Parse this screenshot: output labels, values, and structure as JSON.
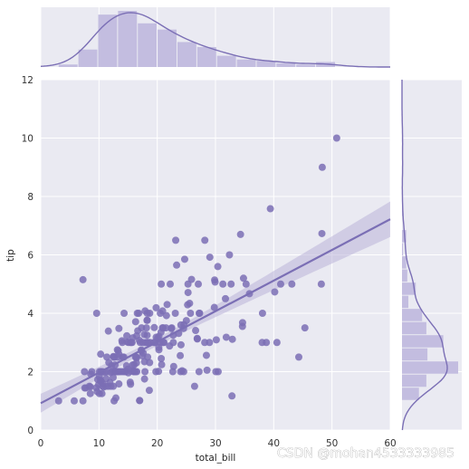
{
  "chart_data": {
    "type": "scatter",
    "subtype": "jointplot-with-regression",
    "xlabel": "total_bill",
    "ylabel": "tip",
    "xlim": [
      0,
      60
    ],
    "ylim": [
      0,
      12
    ],
    "x_ticks": [
      0,
      10,
      20,
      30,
      40,
      50,
      60
    ],
    "y_ticks": [
      0,
      2,
      4,
      6,
      8,
      10,
      12
    ],
    "grid": true,
    "legend": "none",
    "colors": {
      "points": "#7b6fb5",
      "line": "#7b6fb5",
      "band": "#b9b3d9",
      "hist_bar": "#c3bde0",
      "background": "#eaeaf2",
      "grid": "#ffffff"
    },
    "regression": {
      "intercept": 0.92,
      "slope": 0.105
    },
    "points": [
      [
        3.07,
        1.0
      ],
      [
        5.75,
        1.0
      ],
      [
        7.25,
        1.0
      ],
      [
        7.25,
        5.15
      ],
      [
        7.51,
        2.0
      ],
      [
        7.56,
        1.44
      ],
      [
        7.74,
        1.44
      ],
      [
        8.35,
        1.5
      ],
      [
        8.51,
        1.25
      ],
      [
        8.52,
        1.48
      ],
      [
        8.58,
        1.92
      ],
      [
        8.77,
        2.0
      ],
      [
        9.55,
        1.45
      ],
      [
        9.6,
        4.0
      ],
      [
        9.68,
        1.32
      ],
      [
        9.78,
        1.73
      ],
      [
        9.94,
        1.56
      ],
      [
        10.07,
        1.83
      ],
      [
        10.07,
        1.25
      ],
      [
        10.09,
        2.0
      ],
      [
        10.27,
        1.71
      ],
      [
        10.29,
        2.6
      ],
      [
        10.33,
        1.67
      ],
      [
        10.33,
        2.0
      ],
      [
        10.34,
        2.0
      ],
      [
        10.34,
        1.66
      ],
      [
        10.51,
        1.25
      ],
      [
        10.59,
        1.61
      ],
      [
        10.63,
        2.0
      ],
      [
        10.65,
        1.5
      ],
      [
        10.77,
        1.47
      ],
      [
        11.02,
        1.98
      ],
      [
        11.17,
        1.5
      ],
      [
        11.24,
        1.76
      ],
      [
        11.35,
        2.5
      ],
      [
        11.38,
        2.0
      ],
      [
        11.59,
        1.5
      ],
      [
        11.61,
        3.39
      ],
      [
        11.69,
        2.31
      ],
      [
        11.87,
        1.63
      ],
      [
        12.02,
        1.97
      ],
      [
        12.03,
        1.5
      ],
      [
        12.16,
        2.2
      ],
      [
        12.26,
        2.0
      ],
      [
        12.43,
        1.8
      ],
      [
        12.46,
        1.5
      ],
      [
        12.48,
        2.52
      ],
      [
        12.54,
        2.5
      ],
      [
        12.6,
        1.0
      ],
      [
        12.66,
        2.5
      ],
      [
        12.69,
        2.0
      ],
      [
        12.74,
        2.01
      ],
      [
        12.76,
        2.23
      ],
      [
        12.9,
        1.1
      ],
      [
        13.0,
        2.0
      ],
      [
        13.03,
        2.0
      ],
      [
        13.13,
        2.0
      ],
      [
        13.16,
        2.75
      ],
      [
        13.27,
        2.5
      ],
      [
        13.28,
        2.72
      ],
      [
        13.37,
        2.0
      ],
      [
        13.39,
        2.61
      ],
      [
        13.42,
        1.58
      ],
      [
        13.42,
        3.48
      ],
      [
        13.51,
        2.0
      ],
      [
        13.81,
        2.0
      ],
      [
        13.94,
        3.06
      ],
      [
        14.0,
        3.0
      ],
      [
        14.07,
        2.5
      ],
      [
        14.15,
        2.0
      ],
      [
        14.26,
        2.5
      ],
      [
        14.31,
        4.0
      ],
      [
        14.48,
        2.0
      ],
      [
        14.52,
        2.0
      ],
      [
        14.73,
        2.2
      ],
      [
        14.78,
        3.23
      ],
      [
        14.83,
        3.02
      ],
      [
        15.01,
        2.09
      ],
      [
        15.04,
        1.96
      ],
      [
        15.06,
        3.0
      ],
      [
        15.36,
        1.64
      ],
      [
        15.38,
        3.0
      ],
      [
        15.42,
        1.57
      ],
      [
        15.48,
        2.02
      ],
      [
        15.53,
        3.0
      ],
      [
        15.69,
        3.0
      ],
      [
        15.77,
        2.23
      ],
      [
        15.81,
        3.16
      ],
      [
        15.95,
        2.0
      ],
      [
        15.98,
        2.03
      ],
      [
        16.0,
        2.0
      ],
      [
        16.04,
        2.24
      ],
      [
        16.21,
        2.0
      ],
      [
        16.27,
        2.5
      ],
      [
        16.29,
        3.71
      ],
      [
        16.31,
        2.0
      ],
      [
        16.4,
        2.5
      ],
      [
        16.43,
        2.3
      ],
      [
        16.45,
        2.47
      ],
      [
        16.47,
        3.23
      ],
      [
        16.49,
        2.0
      ],
      [
        16.58,
        4.0
      ],
      [
        16.66,
        3.4
      ],
      [
        16.82,
        4.0
      ],
      [
        16.93,
        3.07
      ],
      [
        16.97,
        1.01
      ],
      [
        16.99,
        1.01
      ],
      [
        17.07,
        3.0
      ],
      [
        17.26,
        2.74
      ],
      [
        17.29,
        2.71
      ],
      [
        17.31,
        3.5
      ],
      [
        17.46,
        2.54
      ],
      [
        17.51,
        3.0
      ],
      [
        17.59,
        2.64
      ],
      [
        17.78,
        3.27
      ],
      [
        17.81,
        2.34
      ],
      [
        17.82,
        1.75
      ],
      [
        17.89,
        2.0
      ],
      [
        17.92,
        4.08
      ],
      [
        18.04,
        3.0
      ],
      [
        18.15,
        3.5
      ],
      [
        18.24,
        3.76
      ],
      [
        18.26,
        3.25
      ],
      [
        18.28,
        4.0
      ],
      [
        18.29,
        3.76
      ],
      [
        18.29,
        3.0
      ],
      [
        18.35,
        2.5
      ],
      [
        18.43,
        3.0
      ],
      [
        18.64,
        1.36
      ],
      [
        18.69,
        2.31
      ],
      [
        18.71,
        4.0
      ],
      [
        18.78,
        3.0
      ],
      [
        19.44,
        3.0
      ],
      [
        19.49,
        3.51
      ],
      [
        19.65,
        3.0
      ],
      [
        19.77,
        2.0
      ],
      [
        19.81,
        4.19
      ],
      [
        19.82,
        3.18
      ],
      [
        20.08,
        3.15
      ],
      [
        20.23,
        2.01
      ],
      [
        20.27,
        2.83
      ],
      [
        20.29,
        2.75
      ],
      [
        20.29,
        3.21
      ],
      [
        20.45,
        3.0
      ],
      [
        20.53,
        4.0
      ],
      [
        20.65,
        3.35
      ],
      [
        20.69,
        2.45
      ],
      [
        20.69,
        5.0
      ],
      [
        20.76,
        2.24
      ],
      [
        20.9,
        3.5
      ],
      [
        20.92,
        4.08
      ],
      [
        21.01,
        3.5
      ],
      [
        21.01,
        3.0
      ],
      [
        21.16,
        3.0
      ],
      [
        21.5,
        3.5
      ],
      [
        21.58,
        3.92
      ],
      [
        21.7,
        4.3
      ],
      [
        22.12,
        2.88
      ],
      [
        22.23,
        5.0
      ],
      [
        22.42,
        3.48
      ],
      [
        22.49,
        3.5
      ],
      [
        22.67,
        2.0
      ],
      [
        22.75,
        3.25
      ],
      [
        22.76,
        3.0
      ],
      [
        22.82,
        2.18
      ],
      [
        23.1,
        4.0
      ],
      [
        23.17,
        6.5
      ],
      [
        23.33,
        5.65
      ],
      [
        23.68,
        3.31
      ],
      [
        23.95,
        2.55
      ],
      [
        24.01,
        2.0
      ],
      [
        24.06,
        3.6
      ],
      [
        24.08,
        2.92
      ],
      [
        24.27,
        2.03
      ],
      [
        24.52,
        3.48
      ],
      [
        24.55,
        2.0
      ],
      [
        24.59,
        3.61
      ],
      [
        24.71,
        5.85
      ],
      [
        25.0,
        3.75
      ],
      [
        25.21,
        4.29
      ],
      [
        25.28,
        5.0
      ],
      [
        25.29,
        4.71
      ],
      [
        25.56,
        4.34
      ],
      [
        25.71,
        4.0
      ],
      [
        25.89,
        5.16
      ],
      [
        26.41,
        1.5
      ],
      [
        26.59,
        3.41
      ],
      [
        26.86,
        3.14
      ],
      [
        26.88,
        3.12
      ],
      [
        27.05,
        5.0
      ],
      [
        27.18,
        2.0
      ],
      [
        27.2,
        4.0
      ],
      [
        27.28,
        4.0
      ],
      [
        28.15,
        3.0
      ],
      [
        28.17,
        6.5
      ],
      [
        28.44,
        2.56
      ],
      [
        28.55,
        2.05
      ],
      [
        28.97,
        3.0
      ],
      [
        29.03,
        5.92
      ],
      [
        29.8,
        4.2
      ],
      [
        29.85,
        5.14
      ],
      [
        29.93,
        5.07
      ],
      [
        30.06,
        2.0
      ],
      [
        30.14,
        3.09
      ],
      [
        30.4,
        5.6
      ],
      [
        30.46,
        2.0
      ],
      [
        31.27,
        5.0
      ],
      [
        31.71,
        4.5
      ],
      [
        31.85,
        3.18
      ],
      [
        32.4,
        6.0
      ],
      [
        32.68,
        5.0
      ],
      [
        32.83,
        1.17
      ],
      [
        32.9,
        3.11
      ],
      [
        34.3,
        6.7
      ],
      [
        34.63,
        3.55
      ],
      [
        34.65,
        3.68
      ],
      [
        34.81,
        5.2
      ],
      [
        35.26,
        5.0
      ],
      [
        35.83,
        4.67
      ],
      [
        38.01,
        3.0
      ],
      [
        38.07,
        4.0
      ],
      [
        38.73,
        3.0
      ],
      [
        39.42,
        7.58
      ],
      [
        40.17,
        4.73
      ],
      [
        40.55,
        3.0
      ],
      [
        41.19,
        5.0
      ],
      [
        43.11,
        5.0
      ],
      [
        44.3,
        2.5
      ],
      [
        45.35,
        3.5
      ],
      [
        48.17,
        5.0
      ],
      [
        48.27,
        6.73
      ],
      [
        48.33,
        9.0
      ],
      [
        50.81,
        10.0
      ]
    ]
  },
  "watermark": "CSDN @mohan4533333985"
}
